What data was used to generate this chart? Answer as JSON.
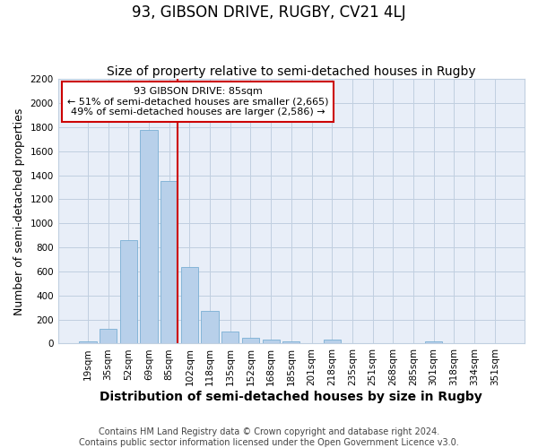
{
  "title": "93, GIBSON DRIVE, RUGBY, CV21 4LJ",
  "subtitle": "Size of property relative to semi-detached houses in Rugby",
  "xlabel": "Distribution of semi-detached houses by size in Rugby",
  "ylabel": "Number of semi-detached properties",
  "categories": [
    "19sqm",
    "35sqm",
    "52sqm",
    "69sqm",
    "85sqm",
    "102sqm",
    "118sqm",
    "135sqm",
    "152sqm",
    "168sqm",
    "185sqm",
    "201sqm",
    "218sqm",
    "235sqm",
    "251sqm",
    "268sqm",
    "285sqm",
    "301sqm",
    "318sqm",
    "334sqm",
    "351sqm"
  ],
  "values": [
    20,
    120,
    860,
    1780,
    1350,
    640,
    270,
    100,
    50,
    30,
    20,
    0,
    30,
    0,
    0,
    0,
    0,
    20,
    0,
    0,
    0
  ],
  "bar_color": "#b8d0ea",
  "bar_edge_color": "#7aafd4",
  "highlight_index": 4,
  "annotation_line1": "93 GIBSON DRIVE: 85sqm",
  "annotation_line2": "← 51% of semi-detached houses are smaller (2,665)",
  "annotation_line3": "49% of semi-detached houses are larger (2,586) →",
  "annotation_box_color": "#ffffff",
  "annotation_box_edge_color": "#cc0000",
  "red_line_color": "#cc0000",
  "ylim": [
    0,
    2200
  ],
  "yticks": [
    0,
    200,
    400,
    600,
    800,
    1000,
    1200,
    1400,
    1600,
    1800,
    2000,
    2200
  ],
  "footer": "Contains HM Land Registry data © Crown copyright and database right 2024.\nContains public sector information licensed under the Open Government Licence v3.0.",
  "background_color": "#ffffff",
  "plot_bg_color": "#e8eef8",
  "grid_color": "#c0cfe0",
  "title_fontsize": 12,
  "subtitle_fontsize": 10,
  "axis_label_fontsize": 9,
  "tick_fontsize": 7.5,
  "annotation_fontsize": 8,
  "footer_fontsize": 7
}
